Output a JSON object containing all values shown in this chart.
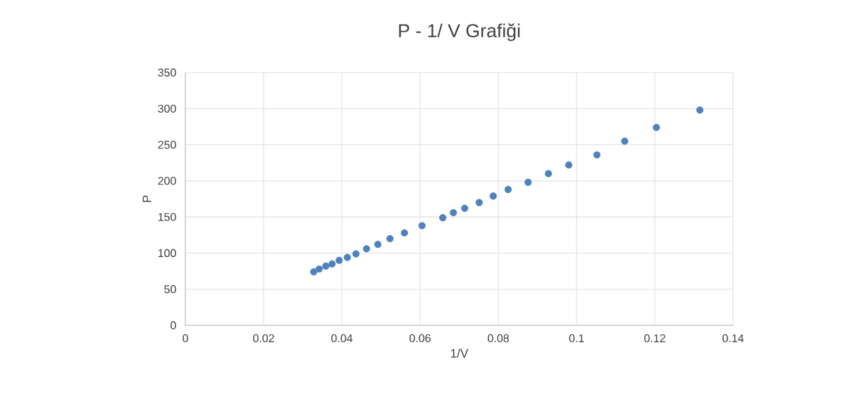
{
  "chart_data": {
    "type": "scatter",
    "title": "P - 1/ V Grafiği",
    "xlabel": "1/V",
    "ylabel": "P",
    "x": [
      0.0328,
      0.0342,
      0.0359,
      0.0375,
      0.0393,
      0.0414,
      0.0436,
      0.0463,
      0.0492,
      0.0523,
      0.056,
      0.0605,
      0.0658,
      0.0685,
      0.0714,
      0.0751,
      0.0787,
      0.0825,
      0.0876,
      0.0928,
      0.098,
      0.1052,
      0.1123,
      0.1204,
      0.1315
    ],
    "series": [
      {
        "color": "#4f81bd",
        "values": [
          74,
          78,
          82,
          85,
          90,
          94,
          99,
          106,
          112,
          120,
          128,
          138,
          149,
          156,
          162,
          170,
          179,
          188,
          198,
          210,
          222,
          236,
          255,
          274,
          298
        ]
      }
    ],
    "xlim": [
      0,
      0.14
    ],
    "xticks": [
      0,
      0.02,
      0.04,
      0.06,
      0.08,
      0.1,
      0.12,
      0.14
    ],
    "ylim": [
      0,
      350
    ],
    "yticks": [
      0,
      50,
      100,
      150,
      200,
      250,
      300,
      350
    ],
    "grid": true,
    "marker": "circle",
    "legend": false
  }
}
